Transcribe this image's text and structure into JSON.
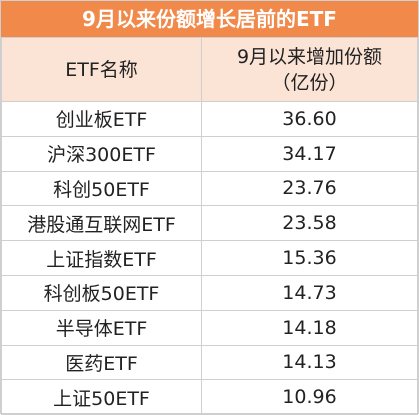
{
  "title": "9月以来份额增长居前的ETF",
  "table": {
    "header": [
      "ETF名称",
      [
        "9月以来增加份额",
        "（亿份）"
      ]
    ],
    "rows": [
      [
        "创业板ETF",
        "36.60"
      ],
      [
        "沪深300ETF",
        "34.17"
      ],
      [
        "科创50ETF",
        "23.76"
      ],
      [
        "港股通互联网ETF",
        "23.58"
      ],
      [
        "上证指数ETF",
        "15.36"
      ],
      [
        "科创板50ETF",
        "14.73"
      ],
      [
        "半导体ETF",
        "14.18"
      ],
      [
        "医药ETF",
        "14.13"
      ],
      [
        "上证50ETF",
        "10.96"
      ]
    ]
  }
}
